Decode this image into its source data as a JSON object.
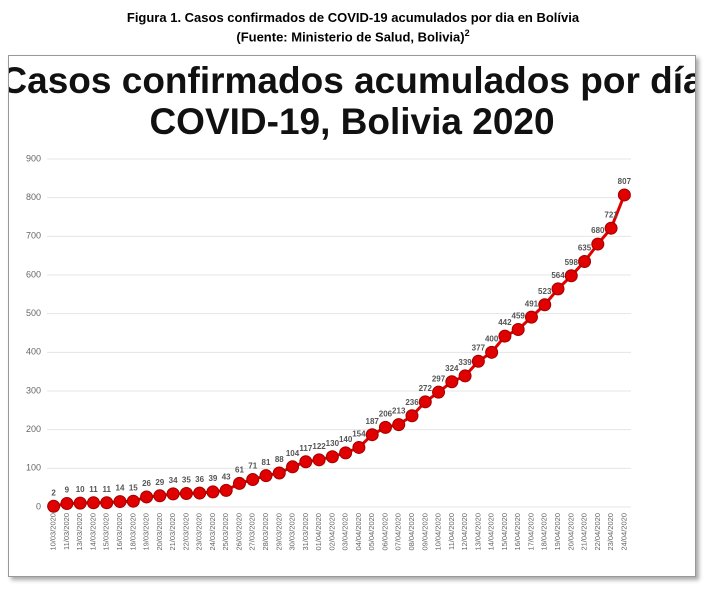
{
  "caption": {
    "line1": "Figura 1. Casos confirmados de COVID-19 acumulados por dia en Bolívia",
    "line2": "(Fuente: Ministerio de Salud, Bolivia)",
    "ref": "2"
  },
  "chart_data": {
    "type": "line",
    "title": [
      "Casos confirmados acumulados por día",
      "COVID-19, Bolivia 2020"
    ],
    "categories": [
      "10/03/2020",
      "11/03/2020",
      "13/03/2020",
      "14/03/2020",
      "15/03/2020",
      "16/03/2020",
      "18/03/2020",
      "19/03/2020",
      "20/03/2020",
      "21/03/2020",
      "22/03/2020",
      "23/03/2020",
      "24/03/2020",
      "25/03/2020",
      "26/03/2020",
      "27/03/2020",
      "28/03/2020",
      "29/03/2020",
      "30/03/2020",
      "31/03/2020",
      "01/04/2020",
      "02/04/2020",
      "03/04/2020",
      "04/04/2020",
      "05/04/2020",
      "06/04/2020",
      "07/04/2020",
      "08/04/2020",
      "09/04/2020",
      "10/04/2020",
      "11/04/2020",
      "12/04/2020",
      "13/04/2020",
      "14/04/2020",
      "15/04/2020",
      "16/04/2020",
      "17/04/2020",
      "18/04/2020",
      "19/04/2020",
      "20/04/2020",
      "21/04/2020",
      "22/04/2020",
      "23/04/2020",
      "24/04/2020"
    ],
    "values": [
      2,
      9,
      10,
      11,
      11,
      14,
      15,
      26,
      29,
      34,
      35,
      36,
      39,
      43,
      61,
      71,
      81,
      88,
      104,
      117,
      122,
      130,
      140,
      154,
      187,
      206,
      213,
      236,
      272,
      297,
      324,
      339,
      377,
      400,
      442,
      459,
      491,
      523,
      564,
      598,
      635,
      680,
      721,
      807
    ],
    "color": "#e00000",
    "ylim": [
      0,
      900
    ],
    "yticks": [
      0,
      100,
      200,
      300,
      400,
      500,
      600,
      700,
      800,
      900
    ],
    "grid": true
  }
}
